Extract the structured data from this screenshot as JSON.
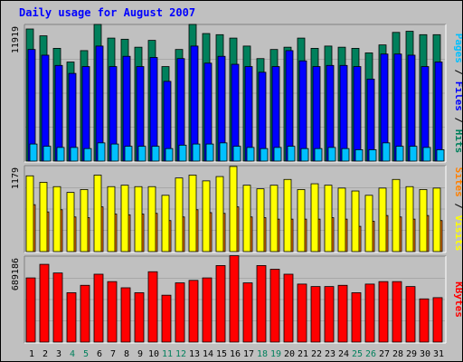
{
  "title": "Daily usage for August 2007",
  "colors": {
    "hits": "#00805c",
    "files": "#0000ff",
    "pages": "#00c0ff",
    "visits": "#ffff00",
    "sites": "#ff8000",
    "kbytes": "#ff0000",
    "weekday_label": "#000000",
    "weekend_label": "#00805c"
  },
  "chart_data": [
    {
      "type": "bar",
      "panel": "hits-files-pages",
      "categories": [
        "1",
        "2",
        "3",
        "4",
        "5",
        "6",
        "7",
        "8",
        "9",
        "10",
        "11",
        "12",
        "13",
        "14",
        "15",
        "16",
        "17",
        "18",
        "19",
        "20",
        "21",
        "22",
        "23",
        "24",
        "25",
        "26",
        "27",
        "28",
        "29",
        "30",
        "31"
      ],
      "weekend_days": [
        4,
        5,
        11,
        12,
        18,
        19,
        25,
        26
      ],
      "ymax_label": "11919",
      "ylim": [
        0,
        11919
      ],
      "series": [
        {
          "name": "Hits",
          "values": [
            11600,
            11000,
            9900,
            8700,
            9700,
            12000,
            10800,
            10700,
            10000,
            10600,
            8300,
            9800,
            12000,
            11200,
            11100,
            10800,
            10100,
            9000,
            9800,
            10000,
            10800,
            9900,
            10100,
            10000,
            9900,
            9500,
            10200,
            11300,
            11400,
            11100,
            11100
          ]
        },
        {
          "name": "Files",
          "values": [
            9800,
            9300,
            8400,
            7700,
            8300,
            10100,
            8300,
            9200,
            8300,
            9100,
            7000,
            9000,
            10100,
            8600,
            9200,
            8500,
            8300,
            7800,
            8300,
            9700,
            8800,
            8300,
            8400,
            8400,
            8300,
            7200,
            9400,
            9400,
            9300,
            8300,
            8700
          ]
        },
        {
          "name": "Pages",
          "values": [
            1500,
            1300,
            1200,
            1200,
            1100,
            1600,
            1500,
            1300,
            1300,
            1300,
            1100,
            1400,
            1500,
            1500,
            1600,
            1300,
            1200,
            1100,
            1200,
            1300,
            1100,
            1100,
            1200,
            1100,
            1000,
            1000,
            1600,
            1300,
            1300,
            1200,
            1000
          ]
        }
      ],
      "axis_legend": [
        {
          "name": "Pages",
          "color_key": "pages"
        },
        {
          "name": "Files",
          "color_key": "files"
        },
        {
          "name": "Hits",
          "color_key": "hits"
        }
      ]
    },
    {
      "type": "bar",
      "panel": "sites-visits",
      "ymax_label": "1179",
      "ylim": [
        0,
        1179
      ],
      "series": [
        {
          "name": "Visits",
          "values": [
            650,
            550,
            580,
            480,
            470,
            620,
            520,
            510,
            520,
            530,
            430,
            480,
            580,
            540,
            530,
            620,
            480,
            470,
            450,
            450,
            450,
            450,
            470,
            450,
            350,
            420,
            500,
            480,
            450,
            500,
            430
          ]
        },
        {
          "name": "Sites",
          "values": [
            1050,
            960,
            900,
            820,
            860,
            1060,
            900,
            920,
            900,
            900,
            780,
            1020,
            1060,
            980,
            1040,
            1180,
            920,
            870,
            920,
            1000,
            860,
            940,
            920,
            880,
            840,
            780,
            880,
            1000,
            900,
            860,
            880
          ]
        }
      ],
      "axis_legend": [
        {
          "name": "Sites",
          "color_key": "sites"
        },
        {
          "name": "Visits",
          "color_key": "visits"
        }
      ]
    },
    {
      "type": "bar",
      "panel": "kbytes",
      "ymax_label": "689186",
      "ylim": [
        0,
        689186
      ],
      "series": [
        {
          "name": "KBytes",
          "values": [
            520000,
            630000,
            560000,
            400000,
            460000,
            550000,
            490000,
            440000,
            400000,
            570000,
            380000,
            480000,
            500000,
            520000,
            620000,
            700000,
            480000,
            620000,
            590000,
            550000,
            470000,
            450000,
            450000,
            460000,
            400000,
            470000,
            490000,
            490000,
            450000,
            350000,
            360000
          ]
        }
      ],
      "axis_legend": [
        {
          "name": "KBytes",
          "color_key": "kbytes"
        }
      ]
    }
  ]
}
